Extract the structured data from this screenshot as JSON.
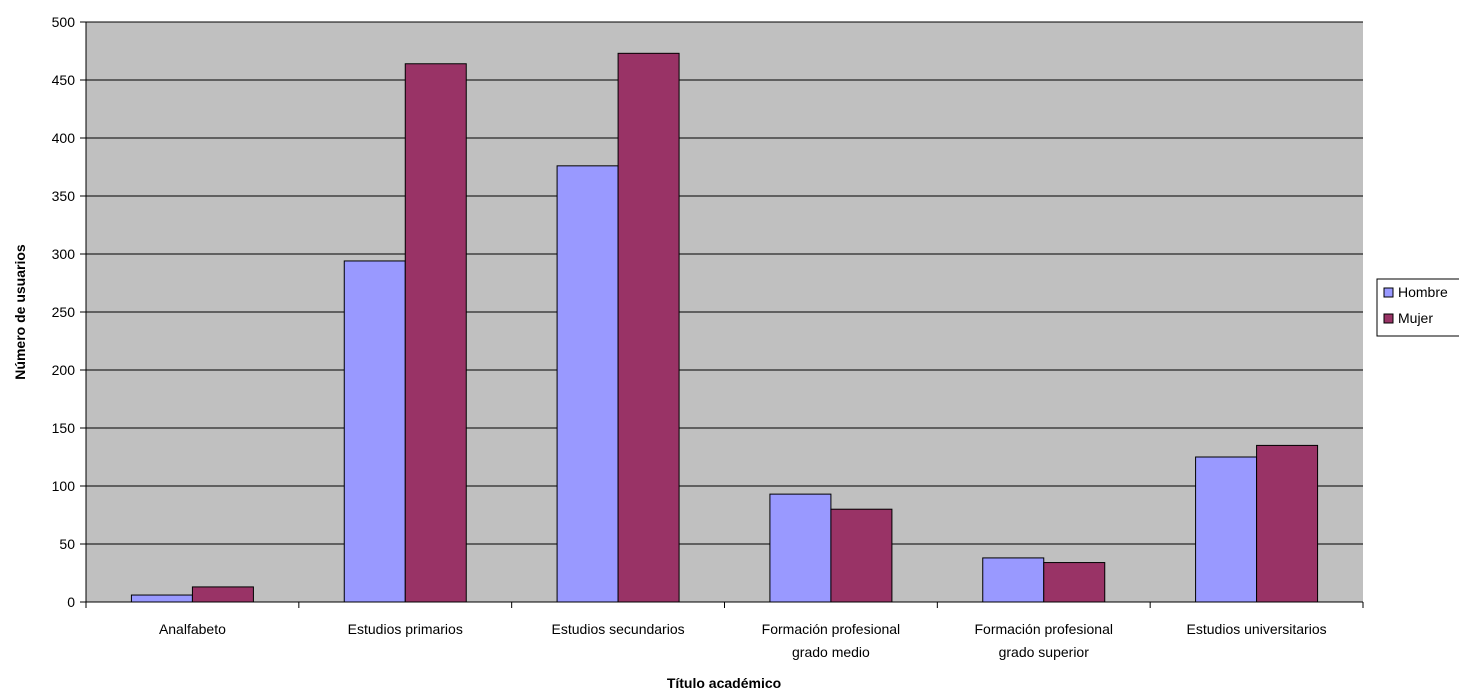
{
  "chart_data": {
    "type": "bar",
    "categories": [
      [
        "Analfabeto"
      ],
      [
        "Estudios primarios"
      ],
      [
        "Estudios secundarios"
      ],
      [
        "Formación profesional",
        "grado medio"
      ],
      [
        "Formación profesional",
        "grado superior"
      ],
      [
        "Estudios universitarios"
      ]
    ],
    "series": [
      {
        "name": "Hombre",
        "color": "#9999ff",
        "values": [
          6,
          294,
          376,
          93,
          38,
          125
        ]
      },
      {
        "name": "Mujer",
        "color": "#993366",
        "values": [
          13,
          464,
          473,
          80,
          34,
          135
        ]
      }
    ],
    "title": "",
    "xlabel": "Título académico",
    "ylabel": "Número de usuarios",
    "ylim": [
      0,
      500
    ],
    "yticks": [
      "0",
      "50",
      "100",
      "150",
      "200",
      "250",
      "300",
      "350",
      "400",
      "450",
      "500"
    ],
    "grid": true,
    "plot_background": "#c0c0c0",
    "legend_position": "right"
  }
}
